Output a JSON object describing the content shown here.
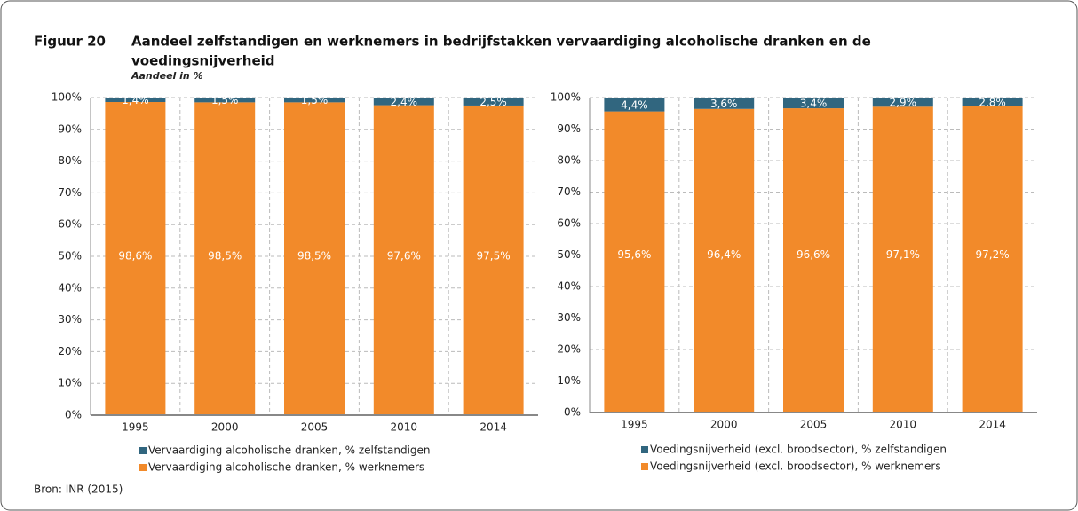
{
  "header": {
    "label": "Figuur 20",
    "title_line1": "Aandeel zelfstandigen en werknemers in bedrijfstakken vervaardiging alcoholische dranken en de",
    "title_line2": "voedingsnijverheid",
    "subtitle": "Aandeel in %",
    "source": "Bron: INR (2015)"
  },
  "chart_data": [
    {
      "type": "stacked_bar",
      "categories": [
        "1995",
        "2000",
        "2005",
        "2010",
        "2014"
      ],
      "series": [
        {
          "name": "Vervaardiging alcoholische dranken,  % zelfstandigen",
          "color": "#31667f",
          "values": [
            1.4,
            1.5,
            1.5,
            2.4,
            2.5
          ],
          "value_labels": [
            "1,4%",
            "1,5%",
            "1,5%",
            "2,4%",
            "2,5%"
          ]
        },
        {
          "name": "Vervaardiging alcoholische dranken,  % werknemers",
          "color": "#f28a2a",
          "values": [
            98.6,
            98.5,
            98.5,
            97.6,
            97.5
          ],
          "value_labels": [
            "98,6%",
            "98,5%",
            "98,5%",
            "97,6%",
            "97,5%"
          ]
        }
      ],
      "ylim": [
        0,
        100
      ],
      "yticks": [
        {
          "value": 0,
          "label": "0%"
        },
        {
          "value": 10,
          "label": "10%"
        },
        {
          "value": 20,
          "label": "20%"
        },
        {
          "value": 30,
          "label": "30%"
        },
        {
          "value": 40,
          "label": "40%"
        },
        {
          "value": 50,
          "label": "50%"
        },
        {
          "value": 60,
          "label": "60%"
        },
        {
          "value": 70,
          "label": "70%"
        },
        {
          "value": 80,
          "label": "80%"
        },
        {
          "value": 90,
          "label": "90%"
        },
        {
          "value": 100,
          "label": "100%"
        }
      ],
      "grid": true
    },
    {
      "type": "stacked_bar",
      "categories": [
        "1995",
        "2000",
        "2005",
        "2010",
        "2014"
      ],
      "series": [
        {
          "name": "Voedingsnijverheid (excl. broodsector), % zelfstandigen",
          "color": "#31667f",
          "values": [
            4.4,
            3.6,
            3.4,
            2.9,
            2.8
          ],
          "value_labels": [
            "4,4%",
            "3,6%",
            "3,4%",
            "2,9%",
            "2,8%"
          ]
        },
        {
          "name": "Voedingsnijverheid (excl. broodsector), % werknemers",
          "color": "#f28a2a",
          "values": [
            95.6,
            96.4,
            96.6,
            97.1,
            97.2
          ],
          "value_labels": [
            "95,6%",
            "96,4%",
            "96,6%",
            "97,1%",
            "97,2%"
          ]
        }
      ],
      "ylim": [
        0,
        100
      ],
      "yticks": [
        {
          "value": 0,
          "label": "0%"
        },
        {
          "value": 10,
          "label": "10%"
        },
        {
          "value": 20,
          "label": "20%"
        },
        {
          "value": 30,
          "label": "30%"
        },
        {
          "value": 40,
          "label": "40%"
        },
        {
          "value": 50,
          "label": "50%"
        },
        {
          "value": 60,
          "label": "60%"
        },
        {
          "value": 70,
          "label": "70%"
        },
        {
          "value": 80,
          "label": "80%"
        },
        {
          "value": 90,
          "label": "90%"
        },
        {
          "value": 100,
          "label": "100%"
        }
      ],
      "grid": true
    }
  ]
}
